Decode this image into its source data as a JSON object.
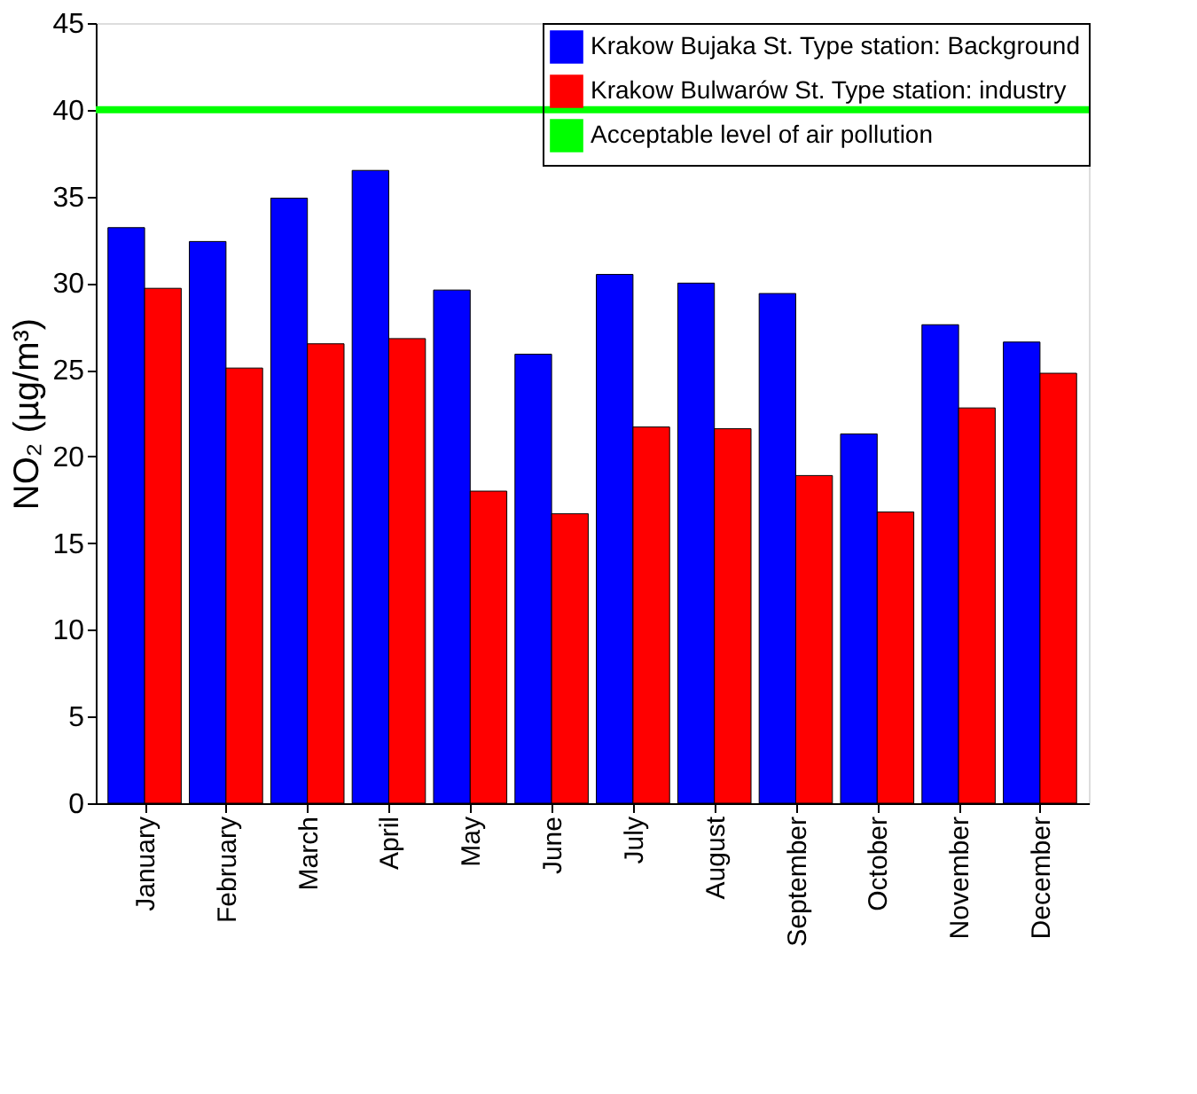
{
  "chart_data": {
    "type": "bar",
    "ylabel": "NO₂ (µg/m³)",
    "categories": [
      "January",
      "February",
      "March",
      "April",
      "May",
      "June",
      "July",
      "August",
      "September",
      "October",
      "November",
      "December"
    ],
    "series": [
      {
        "name": "Krakow Bujaka St. Type station: Background",
        "color": "#0000ff",
        "values": [
          33.2,
          32.4,
          34.9,
          36.5,
          29.6,
          25.9,
          30.5,
          30.0,
          29.4,
          21.3,
          27.6,
          26.6
        ]
      },
      {
        "name": "Krakow Bulwarów St.  Type station: industry",
        "color": "#ff0000",
        "values": [
          29.7,
          25.1,
          26.5,
          26.8,
          18.0,
          16.7,
          21.7,
          21.6,
          18.9,
          16.8,
          22.8,
          24.8
        ]
      }
    ],
    "ref_lines": [
      {
        "axis": "y",
        "value": 40,
        "label": "Acceptable level of air pollution",
        "color": "#00ff00",
        "line_style": "solid"
      }
    ],
    "ylim": [
      0,
      45
    ],
    "yticks": [
      0,
      5,
      10,
      15,
      20,
      25,
      30,
      35,
      40,
      45
    ],
    "grid": false,
    "legend": "top right"
  }
}
